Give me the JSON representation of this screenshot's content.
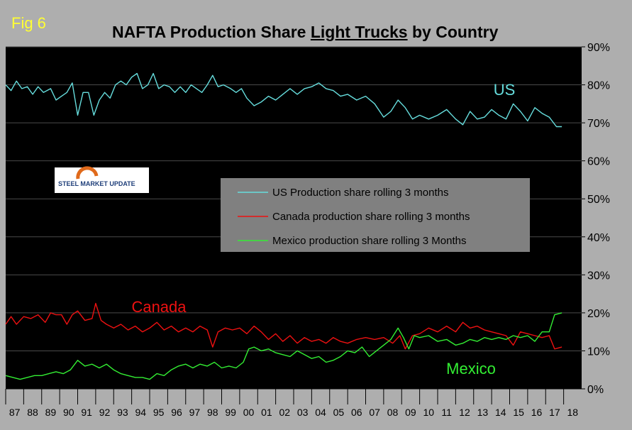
{
  "figure_label": "Fig 6",
  "title": {
    "prefix": "NAFTA Production Share ",
    "underlined": "Light Trucks",
    "suffix": " by Country"
  },
  "logo": {
    "text": "STEEL MARKET UPDATE"
  },
  "colors": {
    "us": "#66dddd",
    "canada": "#ee1111",
    "mexico": "#33ee33",
    "plot_bg": "#000000",
    "page_bg": "#aeaeae",
    "legend_bg": "#808080"
  },
  "chart_data": {
    "type": "line",
    "title": "NAFTA Production Share Light Trucks by Country",
    "categories": [
      "87",
      "88",
      "89",
      "90",
      "91",
      "92",
      "93",
      "94",
      "95",
      "96",
      "97",
      "98",
      "99",
      "00",
      "01",
      "02",
      "03",
      "04",
      "05",
      "06",
      "07",
      "08",
      "09",
      "10",
      "11",
      "12",
      "13",
      "14",
      "15",
      "16",
      "17",
      "18"
    ],
    "x": [
      1987,
      1988,
      1989,
      1990,
      1991,
      1992,
      1993,
      1994,
      1995,
      1996,
      1997,
      1998,
      1999,
      2000,
      2001,
      2002,
      2003,
      2004,
      2005,
      2006,
      2007,
      2008,
      2009,
      2010,
      2011,
      2012,
      2013,
      2014,
      2015,
      2016,
      2017,
      2018
    ],
    "y_ticks": [
      "0%",
      "10%",
      "20%",
      "30%",
      "40%",
      "50%",
      "60%",
      "70%",
      "80%",
      "90%"
    ],
    "ylim": [
      0,
      90
    ],
    "xlim": [
      1987,
      2019
    ],
    "series": [
      {
        "key": "us",
        "name": "US Production share rolling 3 months",
        "annotation": "US",
        "points": [
          [
            1987.0,
            80
          ],
          [
            1987.3,
            78.5
          ],
          [
            1987.6,
            81
          ],
          [
            1987.9,
            79
          ],
          [
            1988.2,
            79.5
          ],
          [
            1988.5,
            77.5
          ],
          [
            1988.8,
            79.5
          ],
          [
            1989.1,
            78
          ],
          [
            1989.5,
            79
          ],
          [
            1989.8,
            76
          ],
          [
            1990.1,
            77
          ],
          [
            1990.4,
            78
          ],
          [
            1990.7,
            80.5
          ],
          [
            1991.0,
            72
          ],
          [
            1991.3,
            78
          ],
          [
            1991.6,
            78
          ],
          [
            1991.9,
            72
          ],
          [
            1992.2,
            76
          ],
          [
            1992.5,
            78
          ],
          [
            1992.8,
            76.5
          ],
          [
            1993.1,
            80
          ],
          [
            1993.4,
            81
          ],
          [
            1993.7,
            80
          ],
          [
            1994.0,
            82
          ],
          [
            1994.3,
            83
          ],
          [
            1994.6,
            79
          ],
          [
            1994.9,
            80
          ],
          [
            1995.2,
            83
          ],
          [
            1995.5,
            79
          ],
          [
            1995.8,
            80
          ],
          [
            1996.1,
            79.5
          ],
          [
            1996.4,
            78
          ],
          [
            1996.7,
            79.5
          ],
          [
            1997.0,
            78
          ],
          [
            1997.3,
            80
          ],
          [
            1997.6,
            79
          ],
          [
            1997.9,
            78
          ],
          [
            1998.2,
            80
          ],
          [
            1998.5,
            82.5
          ],
          [
            1998.8,
            79.5
          ],
          [
            1999.1,
            80
          ],
          [
            1999.5,
            79
          ],
          [
            1999.8,
            78
          ],
          [
            2000.1,
            79
          ],
          [
            2000.4,
            76.5
          ],
          [
            2000.8,
            74.5
          ],
          [
            2001.2,
            75.5
          ],
          [
            2001.6,
            77
          ],
          [
            2002.0,
            76
          ],
          [
            2002.4,
            77.5
          ],
          [
            2002.8,
            79
          ],
          [
            2003.2,
            77.5
          ],
          [
            2003.6,
            79
          ],
          [
            2004.0,
            79.5
          ],
          [
            2004.4,
            80.5
          ],
          [
            2004.8,
            79
          ],
          [
            2005.2,
            78.5
          ],
          [
            2005.6,
            77
          ],
          [
            2006.0,
            77.5
          ],
          [
            2006.5,
            76
          ],
          [
            2007.0,
            77
          ],
          [
            2007.5,
            75
          ],
          [
            2008.0,
            71.5
          ],
          [
            2008.4,
            73
          ],
          [
            2008.8,
            76
          ],
          [
            2009.2,
            74
          ],
          [
            2009.6,
            71
          ],
          [
            2010.0,
            72
          ],
          [
            2010.5,
            71
          ],
          [
            2011.0,
            72
          ],
          [
            2011.5,
            73.5
          ],
          [
            2012.0,
            71
          ],
          [
            2012.4,
            69.5
          ],
          [
            2012.8,
            73
          ],
          [
            2013.2,
            71
          ],
          [
            2013.6,
            71.5
          ],
          [
            2014.0,
            73.5
          ],
          [
            2014.4,
            72
          ],
          [
            2014.8,
            71
          ],
          [
            2015.2,
            75
          ],
          [
            2015.6,
            73
          ],
          [
            2016.0,
            70.5
          ],
          [
            2016.4,
            74
          ],
          [
            2016.8,
            72.5
          ],
          [
            2017.2,
            71.5
          ],
          [
            2017.6,
            69
          ],
          [
            2017.9,
            69
          ]
        ]
      },
      {
        "key": "canada",
        "name": "Canada production share rolling 3 months",
        "annotation": "Canada",
        "points": [
          [
            1987.0,
            17
          ],
          [
            1987.3,
            19
          ],
          [
            1987.6,
            17
          ],
          [
            1988.0,
            19
          ],
          [
            1988.4,
            18.5
          ],
          [
            1988.8,
            19.5
          ],
          [
            1989.2,
            17.5
          ],
          [
            1989.5,
            20
          ],
          [
            1989.8,
            19.5
          ],
          [
            1990.1,
            19.5
          ],
          [
            1990.4,
            17
          ],
          [
            1990.7,
            19.5
          ],
          [
            1991.0,
            20.5
          ],
          [
            1991.4,
            18
          ],
          [
            1991.8,
            18.5
          ],
          [
            1992.0,
            22.5
          ],
          [
            1992.3,
            18
          ],
          [
            1992.6,
            17
          ],
          [
            1993.0,
            16
          ],
          [
            1993.4,
            17
          ],
          [
            1993.8,
            15.5
          ],
          [
            1994.2,
            16.5
          ],
          [
            1994.6,
            15
          ],
          [
            1995.0,
            16
          ],
          [
            1995.4,
            17.5
          ],
          [
            1995.8,
            15.5
          ],
          [
            1996.2,
            16.5
          ],
          [
            1996.6,
            15
          ],
          [
            1997.0,
            16
          ],
          [
            1997.4,
            15
          ],
          [
            1997.8,
            16.5
          ],
          [
            1998.2,
            15.5
          ],
          [
            1998.5,
            11
          ],
          [
            1998.8,
            15
          ],
          [
            1999.2,
            16
          ],
          [
            1999.6,
            15.5
          ],
          [
            2000.0,
            16
          ],
          [
            2000.4,
            14.5
          ],
          [
            2000.8,
            16.5
          ],
          [
            2001.2,
            15
          ],
          [
            2001.6,
            13
          ],
          [
            2002.0,
            14.5
          ],
          [
            2002.4,
            12.5
          ],
          [
            2002.8,
            14
          ],
          [
            2003.2,
            12
          ],
          [
            2003.6,
            13.5
          ],
          [
            2004.0,
            12.5
          ],
          [
            2004.4,
            13
          ],
          [
            2004.8,
            12
          ],
          [
            2005.2,
            13.5
          ],
          [
            2005.6,
            12.5
          ],
          [
            2006.0,
            12
          ],
          [
            2006.5,
            13
          ],
          [
            2007.0,
            13.5
          ],
          [
            2007.5,
            13
          ],
          [
            2008.0,
            13.5
          ],
          [
            2008.5,
            12
          ],
          [
            2008.9,
            14
          ],
          [
            2009.2,
            10.5
          ],
          [
            2009.6,
            14
          ],
          [
            2010.0,
            14.5
          ],
          [
            2010.5,
            16
          ],
          [
            2011.0,
            15
          ],
          [
            2011.5,
            16.5
          ],
          [
            2012.0,
            15
          ],
          [
            2012.4,
            17.5
          ],
          [
            2012.8,
            16
          ],
          [
            2013.2,
            16.5
          ],
          [
            2013.6,
            15.5
          ],
          [
            2014.0,
            15
          ],
          [
            2014.4,
            14.5
          ],
          [
            2014.8,
            14
          ],
          [
            2015.2,
            11.5
          ],
          [
            2015.6,
            15
          ],
          [
            2016.0,
            14.5
          ],
          [
            2016.4,
            14
          ],
          [
            2016.8,
            13.5
          ],
          [
            2017.2,
            14
          ],
          [
            2017.5,
            10.5
          ],
          [
            2017.9,
            11
          ]
        ]
      },
      {
        "key": "mexico",
        "name": "Mexico production share rolling 3 Months",
        "annotation": "Mexico",
        "points": [
          [
            1987.0,
            3.5
          ],
          [
            1987.4,
            3
          ],
          [
            1987.8,
            2.5
          ],
          [
            1988.2,
            3
          ],
          [
            1988.6,
            3.5
          ],
          [
            1989.0,
            3.5
          ],
          [
            1989.4,
            4
          ],
          [
            1989.8,
            4.5
          ],
          [
            1990.2,
            4
          ],
          [
            1990.6,
            5
          ],
          [
            1991.0,
            7.5
          ],
          [
            1991.4,
            6
          ],
          [
            1991.8,
            6.5
          ],
          [
            1992.2,
            5.5
          ],
          [
            1992.6,
            6.5
          ],
          [
            1993.0,
            5
          ],
          [
            1993.4,
            4
          ],
          [
            1993.8,
            3.5
          ],
          [
            1994.2,
            3
          ],
          [
            1994.6,
            3
          ],
          [
            1995.0,
            2.5
          ],
          [
            1995.4,
            4
          ],
          [
            1995.8,
            3.5
          ],
          [
            1996.2,
            5
          ],
          [
            1996.6,
            6
          ],
          [
            1997.0,
            6.5
          ],
          [
            1997.4,
            5.5
          ],
          [
            1997.8,
            6.5
          ],
          [
            1998.2,
            6
          ],
          [
            1998.6,
            7
          ],
          [
            1999.0,
            5.5
          ],
          [
            1999.4,
            6
          ],
          [
            1999.8,
            5.5
          ],
          [
            2000.2,
            7
          ],
          [
            2000.5,
            10.5
          ],
          [
            2000.8,
            11
          ],
          [
            2001.2,
            10
          ],
          [
            2001.6,
            10.5
          ],
          [
            2002.0,
            9.5
          ],
          [
            2002.4,
            9
          ],
          [
            2002.8,
            8.5
          ],
          [
            2003.2,
            10
          ],
          [
            2003.6,
            9
          ],
          [
            2004.0,
            8
          ],
          [
            2004.4,
            8.5
          ],
          [
            2004.8,
            7
          ],
          [
            2005.2,
            7.5
          ],
          [
            2005.6,
            8.5
          ],
          [
            2006.0,
            10
          ],
          [
            2006.4,
            9.5
          ],
          [
            2006.8,
            11
          ],
          [
            2007.2,
            8.5
          ],
          [
            2007.6,
            10
          ],
          [
            2008.0,
            11.5
          ],
          [
            2008.4,
            13
          ],
          [
            2008.8,
            16
          ],
          [
            2009.1,
            13.5
          ],
          [
            2009.4,
            10.5
          ],
          [
            2009.7,
            14
          ],
          [
            2010.0,
            13.5
          ],
          [
            2010.5,
            14
          ],
          [
            2011.0,
            12.5
          ],
          [
            2011.5,
            13
          ],
          [
            2012.0,
            11.5
          ],
          [
            2012.4,
            12
          ],
          [
            2012.8,
            13
          ],
          [
            2013.2,
            12.5
          ],
          [
            2013.6,
            13.5
          ],
          [
            2014.0,
            13
          ],
          [
            2014.4,
            13.5
          ],
          [
            2014.8,
            13
          ],
          [
            2015.2,
            14
          ],
          [
            2015.6,
            13.5
          ],
          [
            2016.0,
            14
          ],
          [
            2016.4,
            12.5
          ],
          [
            2016.8,
            15
          ],
          [
            2017.2,
            15
          ],
          [
            2017.5,
            19.5
          ],
          [
            2017.9,
            20
          ]
        ]
      }
    ]
  }
}
